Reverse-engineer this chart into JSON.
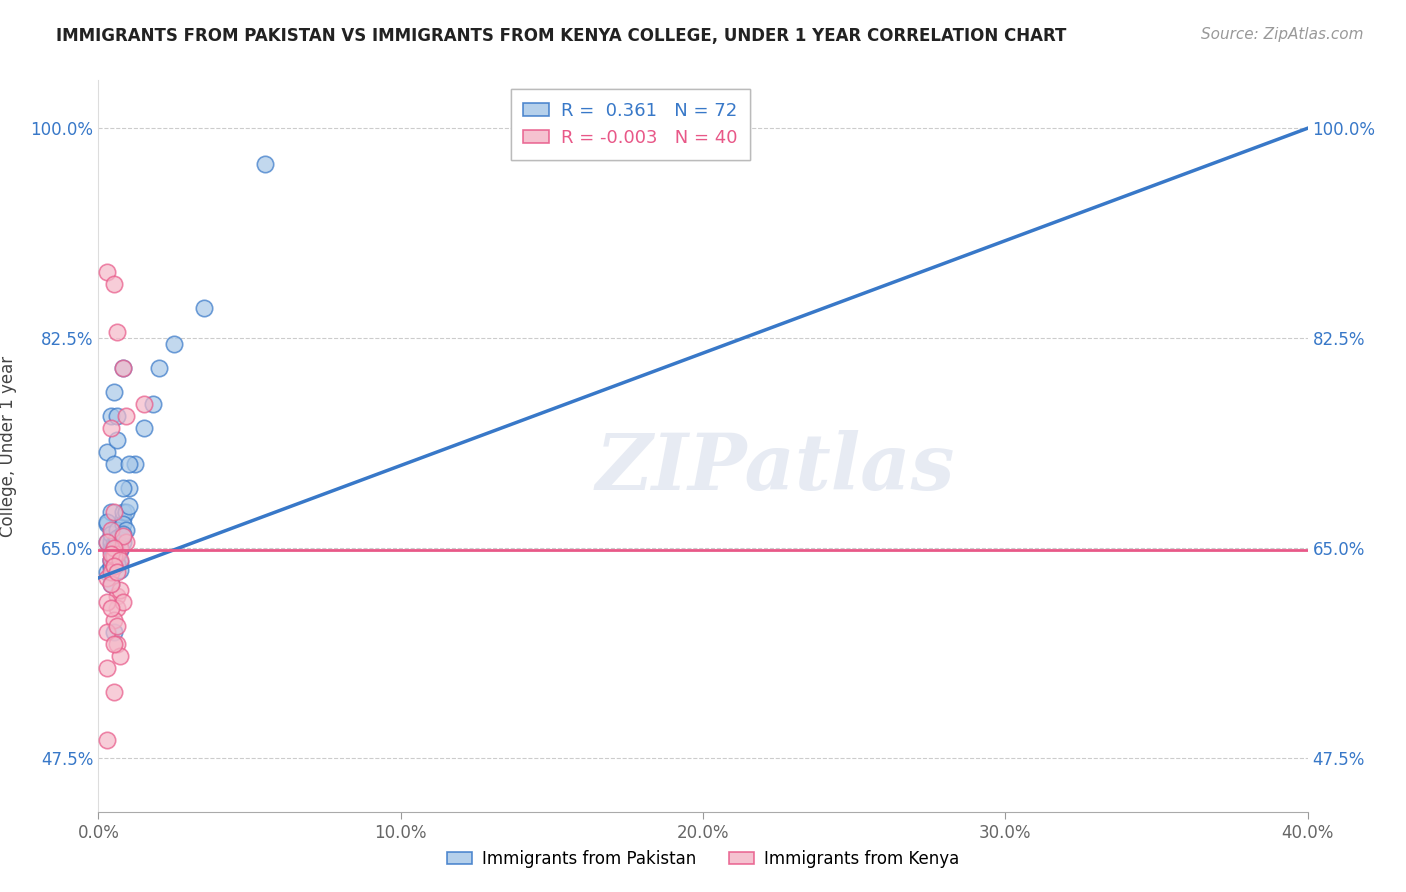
{
  "title": "IMMIGRANTS FROM PAKISTAN VS IMMIGRANTS FROM KENYA COLLEGE, UNDER 1 YEAR CORRELATION CHART",
  "source": "Source: ZipAtlas.com",
  "ylabel": "College, Under 1 year",
  "xlim": [
    0.0,
    40.0
  ],
  "ylim": [
    43.0,
    104.0
  ],
  "yticks": [
    47.5,
    65.0,
    82.5,
    100.0
  ],
  "ytick_labels": [
    "47.5%",
    "65.0%",
    "82.5%",
    "100.0%"
  ],
  "xticks": [
    0.0,
    10.0,
    20.0,
    30.0,
    40.0
  ],
  "xtick_labels": [
    "0.0%",
    "10.0%",
    "20.0%",
    "30.0%",
    "40.0%"
  ],
  "pakistan_R": 0.361,
  "pakistan_N": 72,
  "kenya_R": -0.003,
  "kenya_N": 40,
  "legend_label_pakistan": "Immigrants from Pakistan",
  "legend_label_kenya": "Immigrants from Kenya",
  "blue_color": "#a8c8e8",
  "pink_color": "#f4b8c8",
  "blue_line_color": "#3878c8",
  "pink_line_color": "#e85888",
  "watermark": "ZIPatlas",
  "pakistan_x": [
    0.3,
    0.5,
    0.4,
    0.6,
    0.8,
    0.5,
    0.3,
    0.4,
    0.6,
    0.3,
    0.4,
    0.5,
    0.6,
    0.7,
    0.3,
    0.4,
    0.5,
    0.8,
    0.6,
    0.4,
    0.5,
    0.7,
    0.4,
    0.5,
    0.6,
    0.3,
    0.4,
    0.5,
    0.6,
    0.4,
    1.5,
    0.6,
    0.5,
    0.8,
    0.6,
    0.7,
    0.6,
    1.2,
    0.5,
    0.9,
    0.7,
    0.4,
    0.8,
    0.5,
    0.5,
    1.0,
    0.6,
    0.5,
    0.7,
    0.6,
    1.8,
    2.0,
    0.5,
    0.5,
    0.8,
    0.7,
    0.6,
    0.9,
    0.5,
    0.6,
    1.0,
    0.4,
    0.8,
    0.5,
    3.5,
    2.5,
    5.5,
    0.5,
    1.0,
    0.6,
    0.4,
    0.8
  ],
  "pakistan_y": [
    73.0,
    72.0,
    76.0,
    74.0,
    80.0,
    78.0,
    67.0,
    68.0,
    66.0,
    65.5,
    64.0,
    63.5,
    64.5,
    65.0,
    63.0,
    64.8,
    66.5,
    67.5,
    65.8,
    65.3,
    64.7,
    63.2,
    65.6,
    64.3,
    63.8,
    67.2,
    66.2,
    65.4,
    64.0,
    63.6,
    75.0,
    65.8,
    64.6,
    68.0,
    64.4,
    63.8,
    66.5,
    72.0,
    65.2,
    68.0,
    64.8,
    64.0,
    65.5,
    64.3,
    63.9,
    70.0,
    65.7,
    64.5,
    65.0,
    63.7,
    77.0,
    80.0,
    64.2,
    63.5,
    67.0,
    66.0,
    65.8,
    66.5,
    63.5,
    64.7,
    68.5,
    63.4,
    66.2,
    64.8,
    85.0,
    82.0,
    97.0,
    58.0,
    72.0,
    76.0,
    62.0,
    70.0
  ],
  "kenya_x": [
    0.3,
    0.5,
    0.6,
    0.8,
    0.4,
    1.5,
    0.5,
    0.4,
    0.7,
    0.6,
    0.9,
    0.4,
    0.3,
    0.5,
    0.6,
    0.7,
    0.4,
    0.5,
    0.6,
    0.8,
    0.4,
    0.5,
    0.3,
    0.6,
    0.8,
    0.3,
    0.5,
    0.4,
    0.7,
    0.5,
    0.6,
    0.3,
    0.4,
    0.6,
    0.7,
    0.5,
    0.3,
    0.5,
    0.9,
    0.3
  ],
  "kenya_y": [
    88.0,
    87.0,
    83.0,
    80.0,
    75.0,
    77.0,
    68.0,
    66.5,
    65.0,
    64.5,
    65.5,
    64.0,
    62.5,
    63.5,
    61.0,
    61.5,
    63.0,
    64.3,
    60.0,
    60.5,
    62.0,
    59.0,
    58.0,
    57.0,
    66.0,
    65.5,
    65.0,
    64.5,
    64.0,
    63.5,
    63.0,
    60.5,
    60.0,
    58.5,
    56.0,
    57.0,
    55.0,
    53.0,
    76.0,
    49.0
  ],
  "blue_trend_y0": 62.5,
  "blue_trend_y1": 100.0,
  "pink_trend_y": 64.8
}
